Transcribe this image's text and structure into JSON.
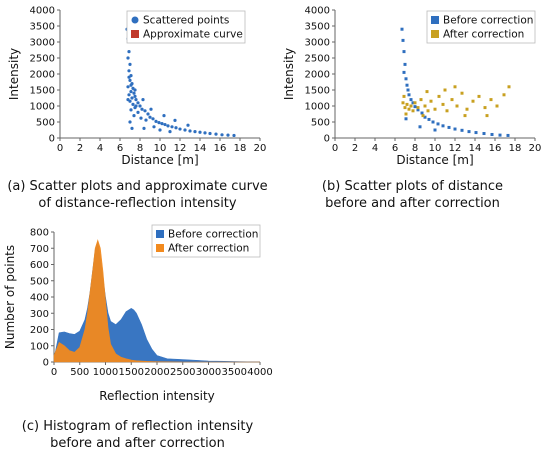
{
  "chart_data": [
    {
      "type": "scatter",
      "xlabel": "Distance [m]",
      "ylabel": "Intensity",
      "xlim": [
        0,
        20
      ],
      "ylim": [
        0,
        4000
      ],
      "xticks": [
        "0",
        "2",
        "4",
        "6",
        "8",
        "10",
        "12",
        "14",
        "16",
        "18",
        "20"
      ],
      "yticks": [
        "0",
        "500",
        "1000",
        "1500",
        "2000",
        "2500",
        "3000",
        "3500",
        "4000"
      ],
      "legend": "top-right",
      "series": [
        {
          "name": "Scattered points",
          "color": "#2f6fbf",
          "points": [
            [
              6.7,
              3400
            ],
            [
              6.8,
              3100
            ],
            [
              6.9,
              2700
            ],
            [
              6.8,
              2500
            ],
            [
              7.0,
              2300
            ],
            [
              6.9,
              2100
            ],
            [
              7.1,
              1950
            ],
            [
              7.0,
              1800
            ],
            [
              7.2,
              1700
            ],
            [
              6.8,
              1600
            ],
            [
              7.3,
              1550
            ],
            [
              7.1,
              1450
            ],
            [
              7.4,
              1400
            ],
            [
              6.9,
              1350
            ],
            [
              7.5,
              1300
            ],
            [
              7.2,
              1250
            ],
            [
              7.6,
              1200
            ],
            [
              7.0,
              1150
            ],
            [
              7.8,
              1100
            ],
            [
              7.3,
              1050
            ],
            [
              8.0,
              1000
            ],
            [
              7.5,
              950
            ],
            [
              8.2,
              900
            ],
            [
              7.1,
              880
            ],
            [
              8.5,
              850
            ],
            [
              7.8,
              800
            ],
            [
              8.8,
              750
            ],
            [
              7.4,
              700
            ],
            [
              9.0,
              650
            ],
            [
              8.1,
              620
            ],
            [
              9.3,
              600
            ],
            [
              8.6,
              560
            ],
            [
              9.6,
              520
            ],
            [
              9.9,
              480
            ],
            [
              10.2,
              450
            ],
            [
              10.5,
              420
            ],
            [
              10.8,
              380
            ],
            [
              11.2,
              350
            ],
            [
              11.6,
              320
            ],
            [
              12.0,
              280
            ],
            [
              12.5,
              250
            ],
            [
              13.0,
              220
            ],
            [
              13.5,
              200
            ],
            [
              14.0,
              180
            ],
            [
              14.5,
              160
            ],
            [
              15.0,
              140
            ],
            [
              15.6,
              120
            ],
            [
              16.2,
              100
            ],
            [
              16.8,
              90
            ],
            [
              17.4,
              80
            ],
            [
              7.0,
              500
            ],
            [
              7.2,
              300
            ],
            [
              8.4,
              300
            ],
            [
              9.4,
              350
            ],
            [
              10.0,
              250
            ],
            [
              11.0,
              200
            ],
            [
              6.9,
              1900
            ],
            [
              7.1,
              1650
            ],
            [
              7.5,
              1500
            ],
            [
              8.3,
              1200
            ],
            [
              9.1,
              900
            ],
            [
              10.4,
              700
            ],
            [
              11.5,
              550
            ],
            [
              12.8,
              400
            ],
            [
              6.8,
              1200
            ],
            [
              7.6,
              1000
            ]
          ]
        },
        {
          "name": "Approximate curve",
          "color": "#c0392b"
        }
      ]
    },
    {
      "type": "scatter",
      "xlabel": "Distance [m]",
      "ylabel": "Intensity",
      "xlim": [
        0,
        20
      ],
      "ylim": [
        0,
        4000
      ],
      "xticks": [
        "0",
        "2",
        "4",
        "6",
        "8",
        "10",
        "12",
        "14",
        "16",
        "18",
        "20"
      ],
      "yticks": [
        "0",
        "500",
        "1000",
        "1500",
        "2000",
        "2500",
        "3000",
        "3500",
        "4000"
      ],
      "legend": "top-right",
      "series": [
        {
          "name": "Before correction",
          "color": "#2f6fbf",
          "points": [
            [
              6.7,
              3400
            ],
            [
              6.8,
              3050
            ],
            [
              6.9,
              2700
            ],
            [
              7.0,
              2300
            ],
            [
              6.9,
              2050
            ],
            [
              7.1,
              1850
            ],
            [
              7.2,
              1650
            ],
            [
              7.3,
              1500
            ],
            [
              7.4,
              1350
            ],
            [
              7.6,
              1200
            ],
            [
              7.8,
              1100
            ],
            [
              8.0,
              980
            ],
            [
              8.3,
              880
            ],
            [
              8.7,
              780
            ],
            [
              9.0,
              650
            ],
            [
              9.4,
              580
            ],
            [
              9.8,
              500
            ],
            [
              10.3,
              440
            ],
            [
              10.8,
              380
            ],
            [
              11.4,
              330
            ],
            [
              12.0,
              280
            ],
            [
              12.7,
              240
            ],
            [
              13.4,
              200
            ],
            [
              14.1,
              170
            ],
            [
              14.9,
              140
            ],
            [
              15.7,
              110
            ],
            [
              16.5,
              90
            ],
            [
              17.3,
              80
            ],
            [
              7.1,
              600
            ],
            [
              8.5,
              350
            ],
            [
              10.0,
              250
            ]
          ]
        },
        {
          "name": "After correction",
          "color": "#c8a020",
          "points": [
            [
              6.8,
              1100
            ],
            [
              7.0,
              950
            ],
            [
              7.2,
              1050
            ],
            [
              7.4,
              900
            ],
            [
              7.6,
              1000
            ],
            [
              7.8,
              850
            ],
            [
              8.0,
              1100
            ],
            [
              8.3,
              950
            ],
            [
              8.6,
              1200
            ],
            [
              9.0,
              1000
            ],
            [
              9.3,
              850
            ],
            [
              9.6,
              1150
            ],
            [
              10.0,
              900
            ],
            [
              10.4,
              1300
            ],
            [
              10.8,
              1050
            ],
            [
              11.2,
              850
            ],
            [
              11.7,
              1200
            ],
            [
              12.2,
              1000
            ],
            [
              12.7,
              1400
            ],
            [
              13.2,
              900
            ],
            [
              13.8,
              1150
            ],
            [
              14.4,
              1300
            ],
            [
              15.0,
              950
            ],
            [
              15.6,
              1200
            ],
            [
              16.2,
              1000
            ],
            [
              16.9,
              1350
            ],
            [
              17.4,
              1600
            ],
            [
              11.0,
              1500
            ],
            [
              9.2,
              1450
            ],
            [
              13.0,
              700
            ],
            [
              15.2,
              700
            ],
            [
              7.1,
              750
            ],
            [
              6.9,
              1300
            ],
            [
              8.8,
              700
            ],
            [
              12.0,
              1600
            ]
          ]
        }
      ]
    },
    {
      "type": "area",
      "xlabel": "Reflection intensity",
      "ylabel": "Number of points",
      "xlim": [
        0,
        4000
      ],
      "ylim": [
        0,
        800
      ],
      "xticks": [
        "0",
        "500",
        "1000",
        "1500",
        "2000",
        "2500",
        "3000",
        "3500",
        "4000"
      ],
      "yticks": [
        "0",
        "100",
        "200",
        "300",
        "400",
        "500",
        "600",
        "700",
        "800"
      ],
      "legend": "top-right",
      "x": [
        0,
        100,
        200,
        300,
        400,
        500,
        600,
        650,
        700,
        750,
        800,
        850,
        900,
        950,
        1000,
        1050,
        1100,
        1200,
        1300,
        1400,
        1500,
        1550,
        1600,
        1700,
        1800,
        1900,
        2000,
        2200,
        2500,
        2800,
        3000,
        3300,
        3600,
        4000
      ],
      "series": [
        {
          "name": "Before correction",
          "color": "#2f6fbf",
          "values": [
            20,
            180,
            185,
            175,
            170,
            190,
            260,
            330,
            430,
            560,
            690,
            740,
            640,
            520,
            400,
            300,
            250,
            230,
            260,
            310,
            330,
            320,
            300,
            230,
            140,
            80,
            40,
            20,
            15,
            10,
            6,
            4,
            2,
            0
          ]
        },
        {
          "name": "After correction",
          "color": "#f28a1e",
          "values": [
            40,
            120,
            100,
            70,
            60,
            90,
            200,
            300,
            430,
            560,
            700,
            750,
            700,
            560,
            380,
            210,
            110,
            50,
            30,
            20,
            12,
            10,
            8,
            6,
            4,
            3,
            2,
            1,
            0,
            0,
            0,
            0,
            0,
            0
          ]
        }
      ]
    }
  ],
  "captions": {
    "a": [
      "(a) Scatter plots and approximate curve",
      "of distance-reflection intensity"
    ],
    "b": [
      "(b) Scatter plots of distance",
      "before and after correction"
    ],
    "c": [
      "(c) Histogram of reflection intensity",
      "before and after correction"
    ]
  }
}
